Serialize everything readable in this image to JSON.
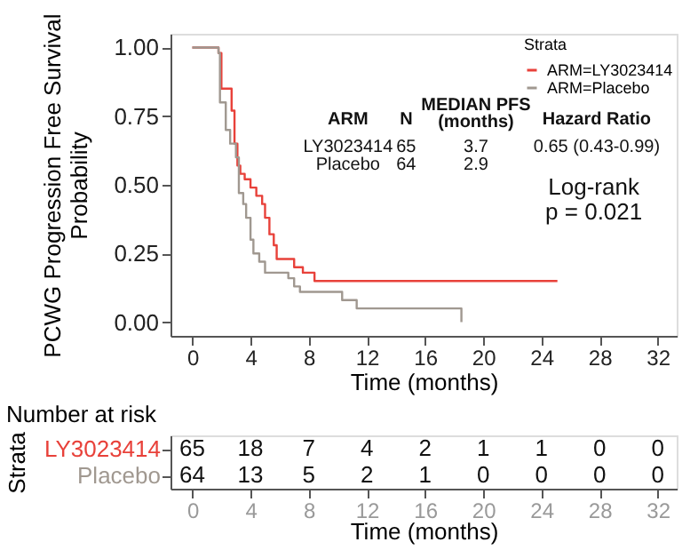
{
  "chart_data": [
    {
      "type": "step",
      "ylabel": "PCWG Progression Free Survival Probability",
      "xlabel": "Time (months)",
      "legend_title": "Strata",
      "legend": "top right",
      "xlim": [
        -1.5,
        33.3
      ],
      "ylim": [
        -0.05,
        1.05
      ],
      "xticks": [
        0,
        4,
        8,
        12,
        16,
        20,
        24,
        28,
        32
      ],
      "yticks": [
        {
          "value": 0,
          "label": "0.00"
        },
        {
          "value": 0.25,
          "label": "0.25"
        },
        {
          "value": 0.5,
          "label": "0.50"
        },
        {
          "value": 0.75,
          "label": "0.75"
        },
        {
          "value": 1,
          "label": "1.00"
        }
      ],
      "grid": false,
      "series": [
        {
          "name": "ARM=LY3023414",
          "color": "#e8413a",
          "x": [
            0,
            1.8,
            2.0,
            2.7,
            2.9,
            3.1,
            3.3,
            3.6,
            4.0,
            4.4,
            4.8,
            5.0,
            5.3,
            5.6,
            5.8,
            7.0,
            7.6,
            8.4,
            25.1
          ],
          "values": [
            1.0,
            0.98,
            0.85,
            0.77,
            0.65,
            0.57,
            0.54,
            0.52,
            0.49,
            0.46,
            0.43,
            0.38,
            0.32,
            0.28,
            0.23,
            0.2,
            0.18,
            0.15,
            0.15
          ]
        },
        {
          "name": "ARM=Placebo",
          "color": "#a09890",
          "x": [
            0,
            1.8,
            1.9,
            2.3,
            2.6,
            3.0,
            3.2,
            3.5,
            3.7,
            4.0,
            4.2,
            4.6,
            5.0,
            6.6,
            7.0,
            7.4,
            10.3,
            11.3,
            18.5,
            18.5
          ],
          "values": [
            1.0,
            0.98,
            0.8,
            0.7,
            0.65,
            0.6,
            0.47,
            0.43,
            0.38,
            0.3,
            0.25,
            0.22,
            0.18,
            0.16,
            0.13,
            0.11,
            0.08,
            0.05,
            0.05,
            0.0
          ]
        }
      ],
      "annotations": [
        "ARM",
        "N",
        "MEDIAN PFS",
        "(months)",
        "Hazard Ratio",
        "LY3023414",
        "65",
        "3.7",
        "0.65 (0.43-0.99)",
        "Placebo",
        "64",
        "2.9",
        "Log-rank",
        "p = 0.021"
      ]
    },
    {
      "type": "heatmap",
      "title": "Number at risk",
      "ylabel": "Strata",
      "xlabel": "Time (months)",
      "x": [
        0,
        4,
        8,
        12,
        16,
        20,
        24,
        28,
        32
      ],
      "xlim": [
        -1.5,
        33.3
      ],
      "xticks": [
        0,
        4,
        8,
        12,
        16,
        20,
        24,
        28,
        32
      ],
      "data_labels": true,
      "y_categories": [
        "LY3023414",
        "Placebo"
      ],
      "cells": [
        [
          65,
          18,
          7,
          4,
          2,
          1,
          1,
          0,
          0
        ],
        [
          64,
          13,
          5,
          2,
          1,
          0,
          0,
          0,
          0
        ]
      ]
    }
  ]
}
